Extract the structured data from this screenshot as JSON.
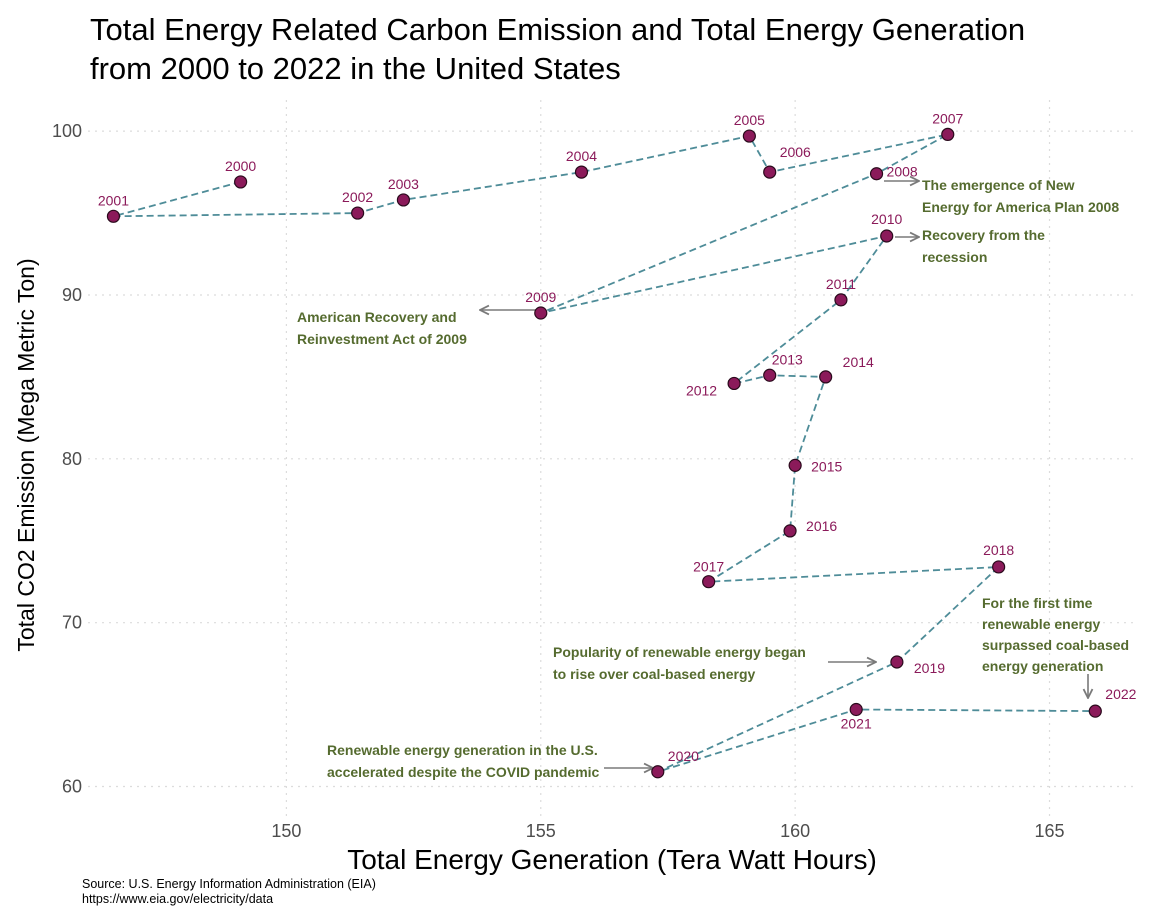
{
  "chart_data": {
    "type": "scatter",
    "title_lines": [
      "Total Energy Related Carbon Emission and Total Energy Generation",
      "from 2000 to 2022 in the United States"
    ],
    "xlabel": "Total Energy Generation (Tera Watt Hours)",
    "ylabel": "Total CO2 Emission (Mega Metric Ton)",
    "xlim": [
      146.1,
      166.7
    ],
    "ylim": [
      58.2,
      101.9
    ],
    "x_ticks": [
      150,
      155,
      160,
      165
    ],
    "y_ticks": [
      60,
      70,
      80,
      90,
      100
    ],
    "grid": true,
    "connect_points": true,
    "colors": {
      "point_fill": "#8B1A5A",
      "point_stroke": "#2a0a1c",
      "line": "#4E8C98",
      "point_label": "#8B1A5A",
      "annotation_text": "#556B2F",
      "arrow": "#7a7a7a",
      "grid": "#dcdcdc"
    },
    "points": [
      {
        "label": "2000",
        "x": 149.1,
        "y": 96.9
      },
      {
        "label": "2001",
        "x": 146.6,
        "y": 94.8
      },
      {
        "label": "2002",
        "x": 151.4,
        "y": 95.0
      },
      {
        "label": "2003",
        "x": 152.3,
        "y": 95.8
      },
      {
        "label": "2004",
        "x": 155.8,
        "y": 97.5
      },
      {
        "label": "2005",
        "x": 159.1,
        "y": 99.7
      },
      {
        "label": "2006",
        "x": 159.5,
        "y": 97.5
      },
      {
        "label": "2007",
        "x": 163.0,
        "y": 99.8
      },
      {
        "label": "2008",
        "x": 161.6,
        "y": 97.4
      },
      {
        "label": "2009",
        "x": 155.0,
        "y": 88.9
      },
      {
        "label": "2010",
        "x": 161.8,
        "y": 93.6
      },
      {
        "label": "2011",
        "x": 160.9,
        "y": 89.7
      },
      {
        "label": "2012",
        "x": 158.8,
        "y": 84.6
      },
      {
        "label": "2013",
        "x": 159.5,
        "y": 85.1
      },
      {
        "label": "2014",
        "x": 160.6,
        "y": 85.0
      },
      {
        "label": "2015",
        "x": 160.0,
        "y": 79.6
      },
      {
        "label": "2016",
        "x": 159.9,
        "y": 75.6
      },
      {
        "label": "2017",
        "x": 158.3,
        "y": 72.5
      },
      {
        "label": "2018",
        "x": 164.0,
        "y": 73.4
      },
      {
        "label": "2019",
        "x": 162.0,
        "y": 67.6
      },
      {
        "label": "2020",
        "x": 157.3,
        "y": 60.9
      },
      {
        "label": "2021",
        "x": 161.2,
        "y": 64.7
      },
      {
        "label": "2022",
        "x": 165.9,
        "y": 64.6
      }
    ],
    "annotations": [
      {
        "lines": [
          "The emergence of New",
          "Energy for America Plan 2008"
        ]
      },
      {
        "lines": [
          "Recovery from the",
          "recession"
        ]
      },
      {
        "lines": [
          "American Recovery and",
          "Reinvestment Act of 2009"
        ]
      },
      {
        "lines": [
          "Popularity of renewable energy began",
          "to rise over coal-based energy"
        ]
      },
      {
        "lines": [
          "For the first time",
          "renewable energy",
          "surpassed coal-based",
          "energy generation"
        ]
      },
      {
        "lines": [
          "Renewable energy generation in the U.S.",
          "accelerated despite the COVID pandemic"
        ]
      }
    ]
  },
  "caption": {
    "source": "Source: U.S. Energy Information Administration (EIA)",
    "url": "https://www.eia.gov/electricity/data"
  }
}
